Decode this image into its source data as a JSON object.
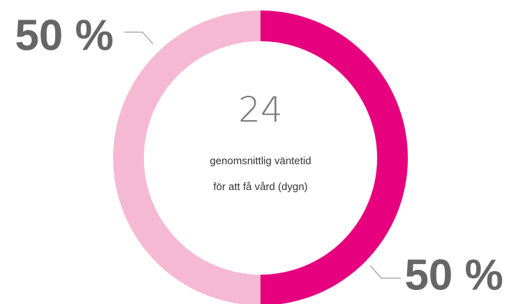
{
  "chart_data": {
    "type": "pie",
    "donut": true,
    "values": [
      50,
      50
    ],
    "value_labels": [
      "50 %",
      "50 %"
    ],
    "colors": [
      "#e6007e",
      "#f5b9d3"
    ],
    "center_value": 24,
    "center_text": "genomsnittlig väntetid för att få vård (dygn)"
  }
}
